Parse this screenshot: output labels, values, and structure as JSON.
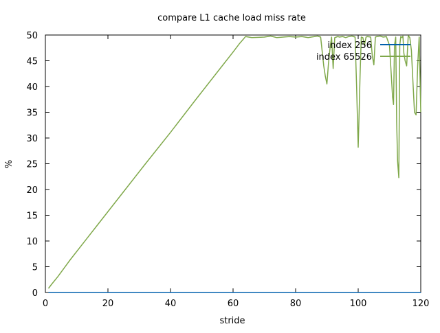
{
  "chart_data": {
    "type": "line",
    "title": "compare L1 cache load miss rate",
    "xlabel": "stride",
    "ylabel": "%",
    "xlim": [
      0,
      120
    ],
    "ylim": [
      0,
      50
    ],
    "x_ticks": [
      0,
      20,
      40,
      60,
      80,
      100,
      120
    ],
    "y_ticks": [
      0,
      5,
      10,
      15,
      20,
      25,
      30,
      35,
      40,
      45,
      50
    ],
    "grid": false,
    "legend_position": "top-right",
    "series": [
      {
        "name": "index 256",
        "color": "#0060ad",
        "x": [
          1,
          120
        ],
        "y": [
          0,
          0
        ]
      },
      {
        "name": "index 65526",
        "color": "#7fa84a",
        "x": [
          1,
          2,
          4,
          8,
          16,
          24,
          32,
          40,
          48,
          56,
          60,
          62,
          63,
          64,
          66,
          70,
          72,
          74,
          76,
          78,
          80,
          82,
          84,
          86,
          87,
          88,
          89,
          89.5,
          90,
          90.5,
          91,
          91.5,
          92,
          92.5,
          93,
          93.5,
          94,
          95,
          96,
          97,
          98,
          99,
          99.5,
          100,
          100.3,
          100.6,
          101,
          101.5,
          102,
          102.5,
          103,
          104,
          104.5,
          105,
          105.5,
          106,
          107,
          108,
          109,
          110,
          110.5,
          111,
          111.3,
          111.6,
          112,
          112.3,
          112.6,
          113,
          113.3,
          113.6,
          114,
          114.3,
          114.6,
          115,
          115.5,
          116,
          116.5,
          117,
          117.5,
          118,
          118.5,
          119,
          119.5,
          120
        ],
        "y": [
          0.8,
          1.6,
          3.1,
          6.4,
          12.6,
          18.8,
          25.0,
          31.1,
          37.4,
          43.6,
          46.7,
          48.3,
          49.0,
          49.7,
          49.5,
          49.6,
          49.8,
          49.5,
          49.6,
          49.7,
          49.6,
          49.7,
          49.5,
          49.7,
          49.8,
          49.6,
          44.0,
          42.0,
          40.5,
          44.5,
          47.5,
          49.6,
          43.5,
          49.5,
          49.6,
          49.7,
          49.6,
          49.7,
          49.5,
          49.7,
          49.8,
          49.6,
          40.0,
          28.2,
          35.0,
          42.0,
          49.6,
          49.5,
          48.0,
          49.6,
          49.7,
          49.6,
          46.0,
          44.2,
          49.6,
          49.7,
          49.8,
          49.6,
          49.7,
          48.0,
          43.0,
          38.0,
          36.5,
          48.0,
          49.6,
          33.0,
          25.5,
          22.3,
          48.0,
          49.7,
          49.5,
          49.8,
          46.5,
          45.0,
          44.0,
          49.9,
          49.5,
          47.0,
          41.0,
          35.0,
          34.5,
          44.0,
          49.6,
          35.0
        ]
      }
    ]
  }
}
